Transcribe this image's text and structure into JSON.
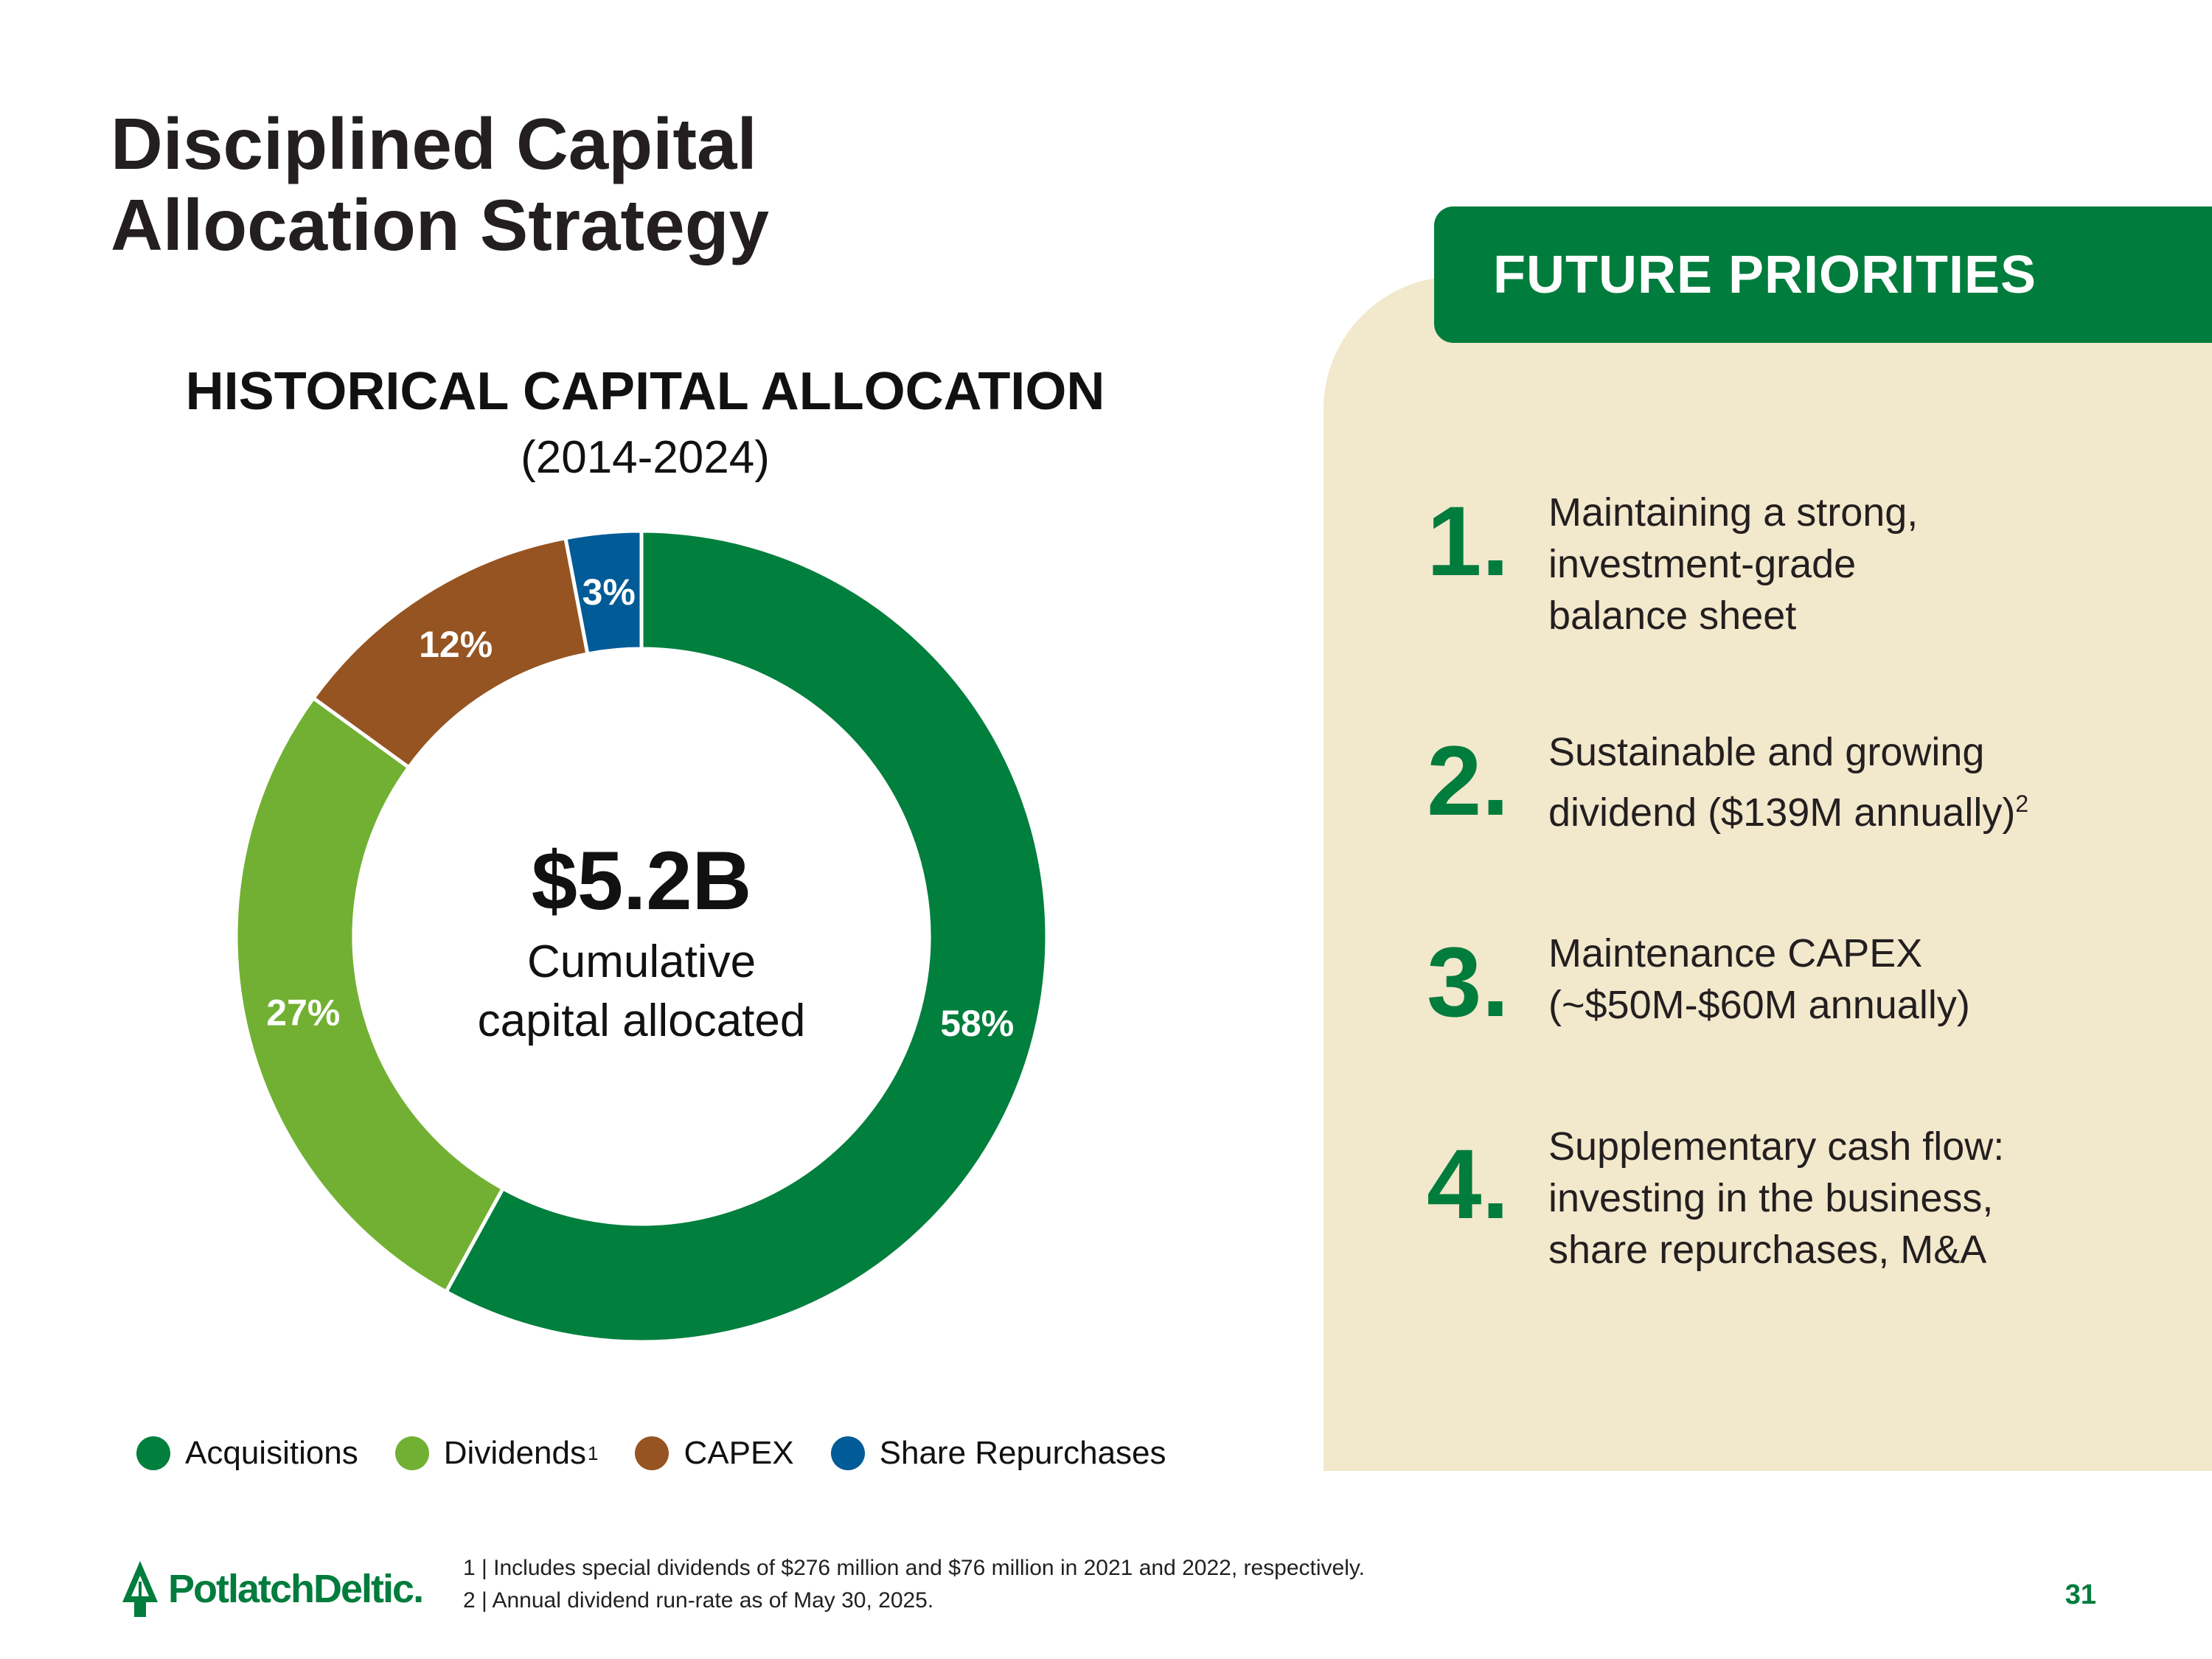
{
  "title": {
    "line1": "Disciplined Capital",
    "line2": "Allocation Strategy"
  },
  "chart_data": {
    "type": "pie",
    "title": "HISTORICAL CAPITAL ALLOCATION",
    "subtitle": "(2014-2024)",
    "categories": [
      "Acquisitions",
      "Dividends",
      "CAPEX",
      "Share Repurchases"
    ],
    "values": [
      58,
      27,
      12,
      3
    ],
    "data_labels": [
      "58%",
      "27%",
      "12%",
      "3%"
    ],
    "colors": [
      "#007f3d",
      "#72b033",
      "#955422",
      "#005b96"
    ],
    "center_value": "$5.2B",
    "center_caption_line1": "Cumulative",
    "center_caption_line2": "capital allocated",
    "legend_position": "bottom"
  },
  "legend": [
    {
      "label": "Acquisitions",
      "sup": "",
      "color": "#007f3d"
    },
    {
      "label": "Dividends",
      "sup": "1",
      "color": "#72b033"
    },
    {
      "label": "CAPEX",
      "sup": "",
      "color": "#955422"
    },
    {
      "label": "Share Repurchases",
      "sup": "",
      "color": "#005b96"
    }
  ],
  "priorities": {
    "header": "FUTURE PRIORITIES",
    "items": [
      {
        "num": "1.",
        "lines": [
          "Maintaining a strong,",
          "investment-grade",
          "balance sheet"
        ],
        "sup": ""
      },
      {
        "num": "2.",
        "lines": [
          "Sustainable and growing",
          "dividend ($139M annually)"
        ],
        "sup": "2"
      },
      {
        "num": "3.",
        "lines": [
          "Maintenance CAPEX",
          "(~$50M-$60M annually)"
        ],
        "sup": ""
      },
      {
        "num": "4.",
        "lines": [
          "Supplementary cash flow:",
          "investing in the business,",
          "share repurchases, M&A"
        ],
        "sup": ""
      }
    ]
  },
  "footnotes": [
    "1 | Includes special dividends of $276 million and $76 million in 2021 and 2022, respectively.",
    "2 | Annual dividend run-rate as of May 30, 2025."
  ],
  "logo": {
    "text": "PotlatchDeltic",
    "mark": "."
  },
  "page_number": "31"
}
